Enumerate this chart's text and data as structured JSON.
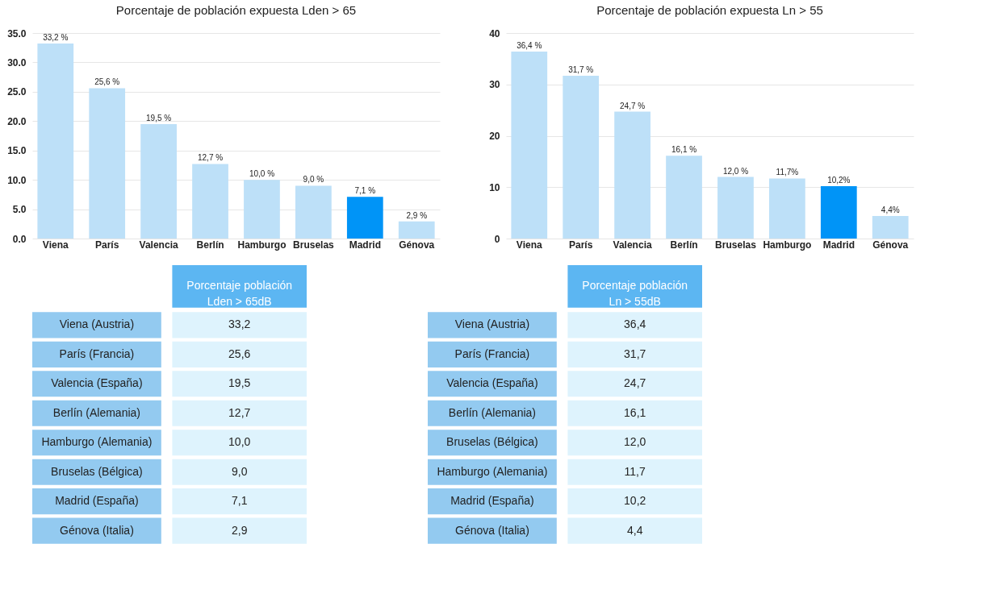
{
  "chart_data": [
    {
      "type": "bar",
      "title": "Porcentaje de población expuesta Lden > 65",
      "categories": [
        "Viena",
        "París",
        "Valencia",
        "Berlín",
        "Hamburgo",
        "Bruselas",
        "Madrid",
        "Génova"
      ],
      "values": [
        33.2,
        25.6,
        19.5,
        12.7,
        10.0,
        9.0,
        7.1,
        2.9
      ],
      "value_labels": [
        "33,2 %",
        "25,6 %",
        "19,5 %",
        "12,7 %",
        "10,0 %",
        "9,0 %",
        "7,1 %",
        "2,9 %"
      ],
      "colors": [
        "#bde0f8",
        "#bde0f8",
        "#bde0f8",
        "#bde0f8",
        "#bde0f8",
        "#bde0f8",
        "#0094f7",
        "#bde0f8"
      ],
      "ylim": [
        0,
        35
      ],
      "yticks": [
        {
          "value": 0,
          "label": "0.0"
        },
        {
          "value": 5,
          "label": "5.0"
        },
        {
          "value": 10,
          "label": "10.0"
        },
        {
          "value": 15,
          "label": "15.0"
        },
        {
          "value": 20,
          "label": "20.0"
        },
        {
          "value": 25,
          "label": "25.0"
        },
        {
          "value": 30,
          "label": "30.0"
        },
        {
          "value": 35,
          "label": "35.0"
        }
      ],
      "grid": "y"
    },
    {
      "type": "bar",
      "title": "Porcentaje de población expuesta Ln > 55",
      "categories": [
        "Viena",
        "París",
        "Valencia",
        "Berlín",
        "Bruselas",
        "Hamburgo",
        "Madrid",
        "Génova"
      ],
      "values": [
        36.4,
        31.7,
        24.7,
        16.1,
        12.0,
        11.7,
        10.2,
        4.4
      ],
      "value_labels": [
        "36,4 %",
        "31,7 %",
        "24,7 %",
        "16,1 %",
        "12,0 %",
        "11,7%",
        "10,2%",
        "4,4%"
      ],
      "colors": [
        "#bde0f8",
        "#bde0f8",
        "#bde0f8",
        "#bde0f8",
        "#bde0f8",
        "#bde0f8",
        "#0094f7",
        "#bde0f8"
      ],
      "ylim": [
        0,
        40
      ],
      "yticks": [
        0,
        10,
        20,
        30,
        40
      ],
      "grid": "y"
    },
    {
      "type": "other",
      "title": "Porcentaje población\nLden > 65dB",
      "categories": [
        "Viena (Austria)",
        "París (Francia)",
        "Valencia (España)",
        "Berlín (Alemania)",
        "Hamburgo (Alemania)",
        "Bruselas (Bélgica)",
        "Madrid (España)",
        "Génova (Italia)"
      ],
      "value_labels": [
        "33,2",
        "25,6",
        "19,5",
        "12,7",
        "10,0",
        "9,0",
        "7,1",
        "2,9"
      ]
    },
    {
      "type": "other",
      "title": "Porcentaje población\nLn > 55dB",
      "categories": [
        "Viena (Austria)",
        "París (Francia)",
        "Valencia (España)",
        "Berlín (Alemania)",
        "Bruselas (Bélgica)",
        "Hamburgo (Alemania)",
        "Madrid (España)",
        "Génova (Italia)"
      ],
      "value_labels": [
        "36,4",
        "31,7",
        "24,7",
        "16,1",
        "12,0",
        "11,7",
        "10,2",
        "4,4"
      ]
    }
  ]
}
